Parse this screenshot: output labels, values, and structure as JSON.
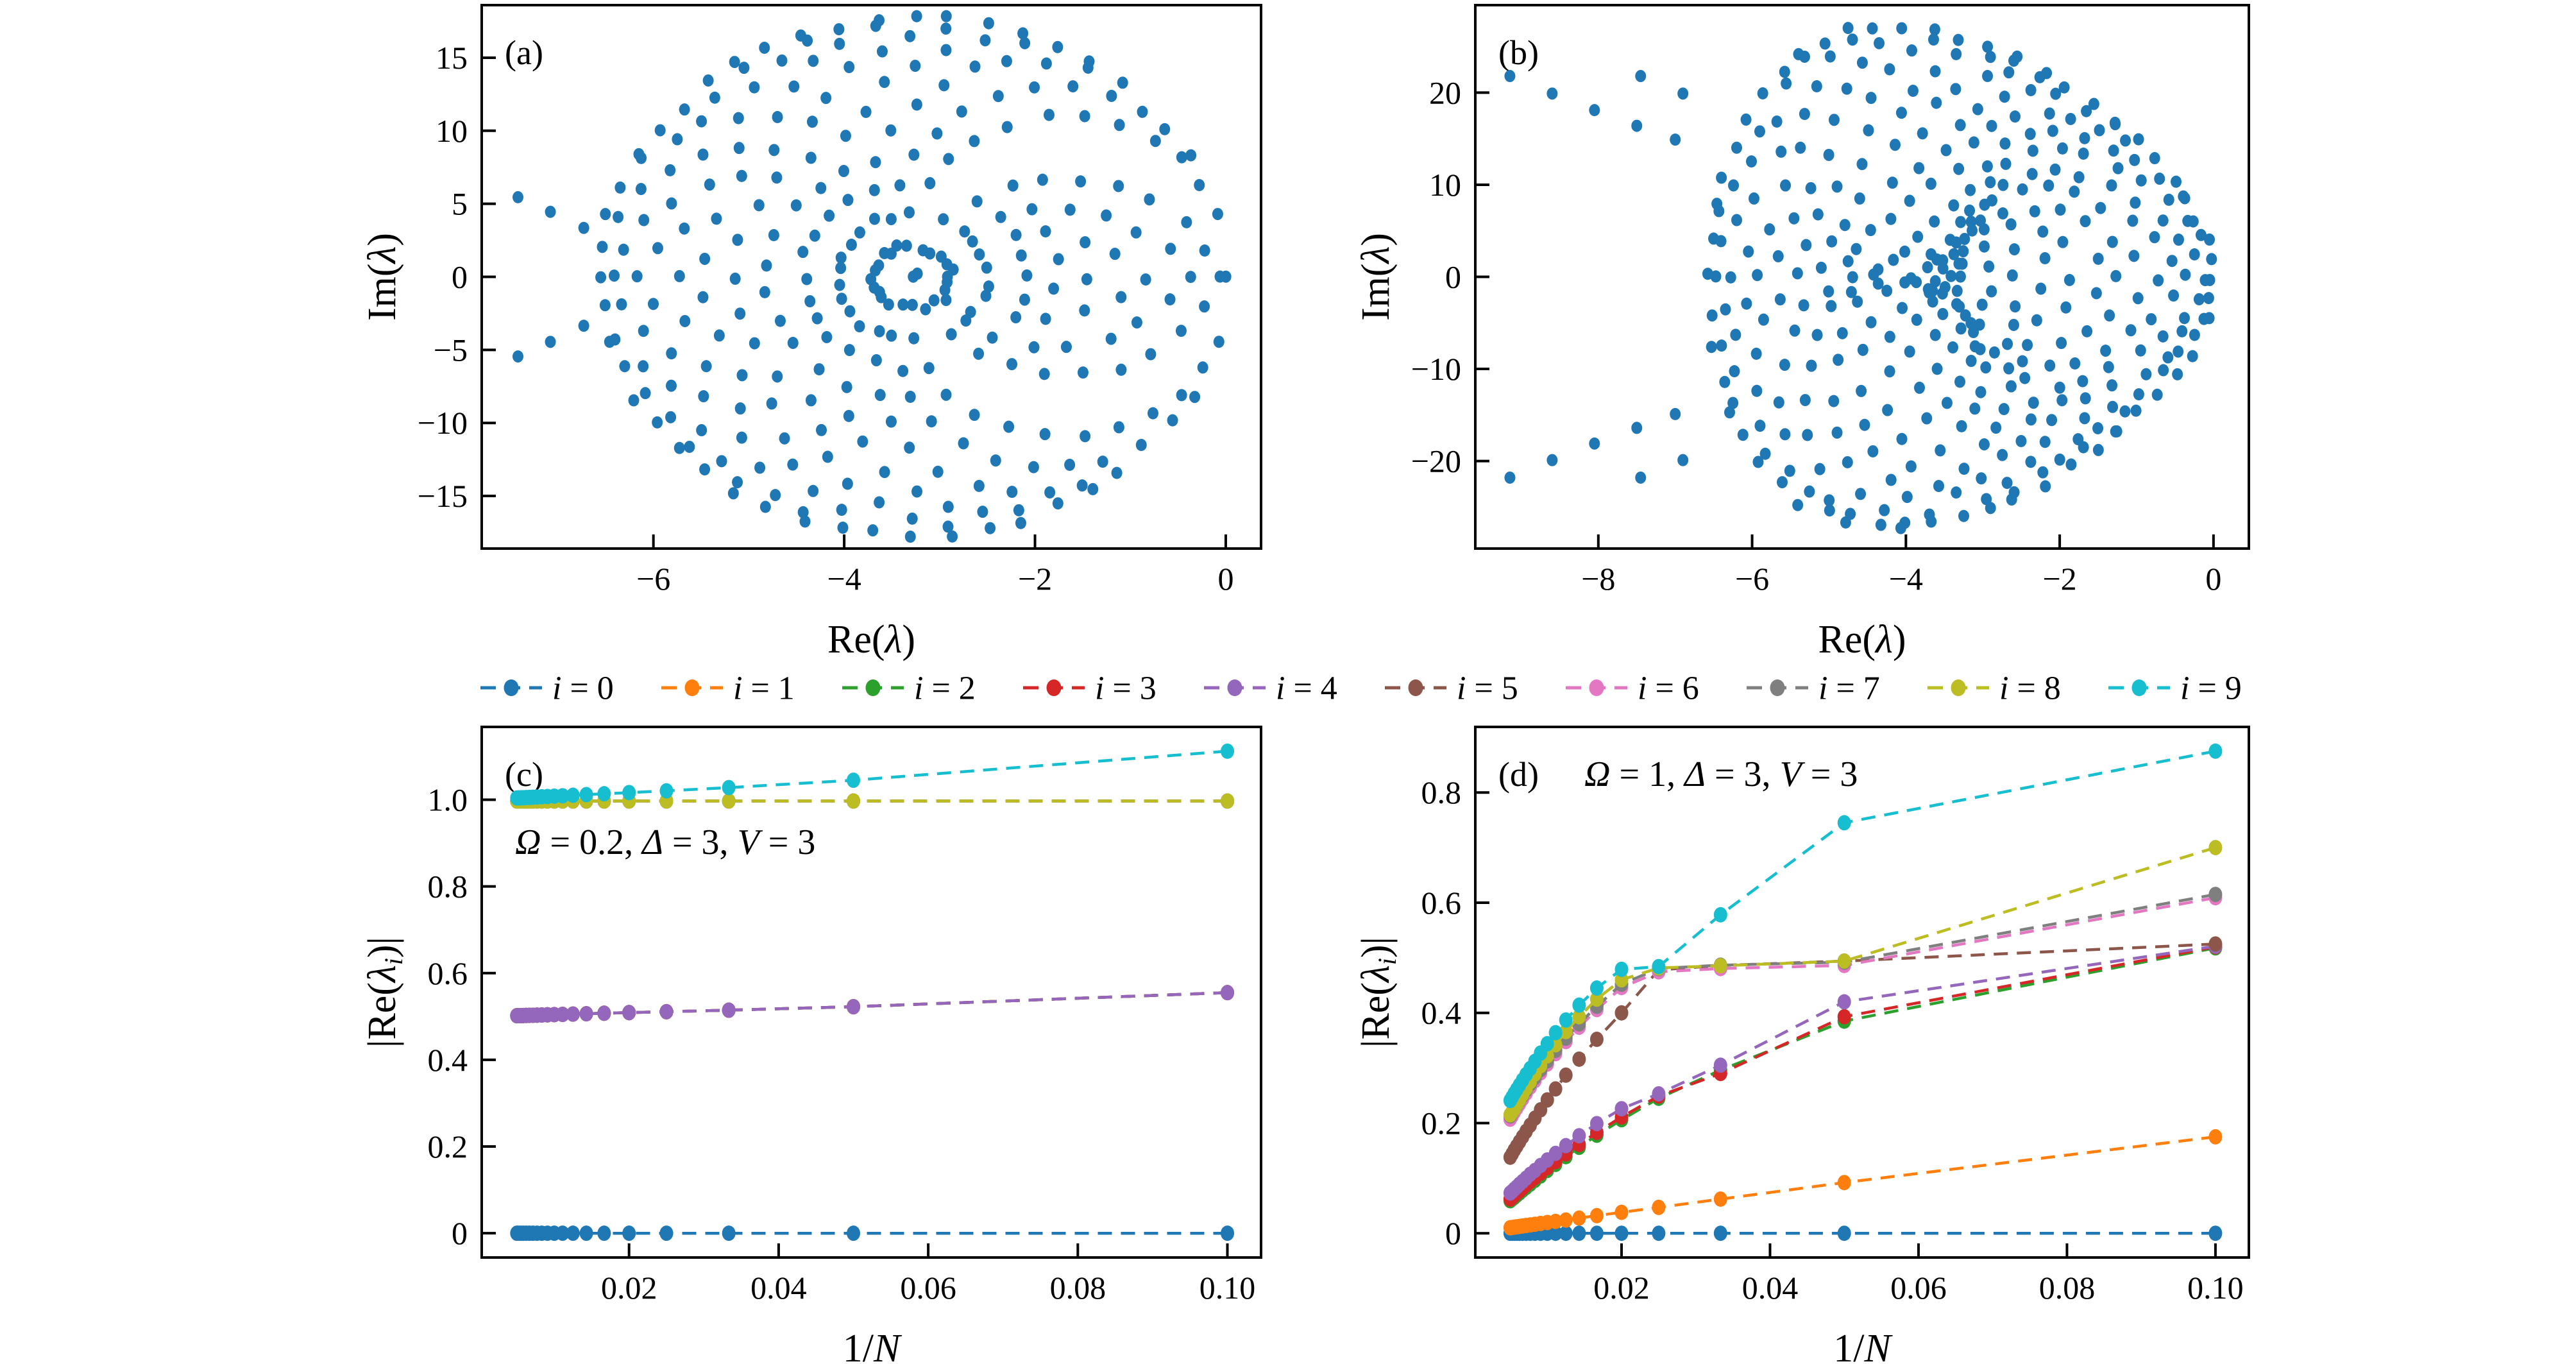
{
  "figure": {
    "background": "#ffffff",
    "scatter_color": "#1f77b4"
  },
  "legend": {
    "position": "top-center-between-rows",
    "entries": [
      {
        "label": "i = 0",
        "color": "#1f77b4"
      },
      {
        "label": "i = 1",
        "color": "#ff7f0e"
      },
      {
        "label": "i = 2",
        "color": "#2ca02c"
      },
      {
        "label": "i = 3",
        "color": "#d62728"
      },
      {
        "label": "i = 4",
        "color": "#9467bd"
      },
      {
        "label": "i = 5",
        "color": "#8c564b"
      },
      {
        "label": "i = 6",
        "color": "#e377c2"
      },
      {
        "label": "i = 7",
        "color": "#7f7f7f"
      },
      {
        "label": "i = 8",
        "color": "#bcbd22"
      },
      {
        "label": "i = 9",
        "color": "#17becf"
      }
    ]
  },
  "chart_data": [
    {
      "id": "a",
      "type": "scatter",
      "panel_label": "(a)",
      "xlabel": "Re(λ)",
      "ylabel": "Im(λ)",
      "xlim": [
        -7.8,
        0.37
      ],
      "ylim": [
        -18.6,
        18.6
      ],
      "xticks": [
        -6,
        -4,
        -2,
        0
      ],
      "xtick_labels": [
        "−6",
        "−4",
        "−2",
        "0"
      ],
      "yticks": [
        -15,
        -10,
        -5,
        0,
        5,
        10,
        15
      ],
      "ytick_labels": [
        "−15",
        "−10",
        "−5",
        "0",
        "5",
        "10",
        "15"
      ],
      "color": "#1f77b4",
      "points_model": {
        "kind": "pair_sum_ellipse",
        "K": 13,
        "a": 1.638,
        "b": 8.9,
        "im_skew": 0,
        "include_zero_pairs": false,
        "jitter": [
          0.1,
          0.45
        ],
        "dedupe": [
          0.1,
          0.55
        ],
        "seed": 11
      },
      "extra_points": [
        [
          -7.42,
          5.45
        ],
        [
          -7.08,
          4.45
        ],
        [
          -6.73,
          3.35
        ],
        [
          -7.42,
          -5.45
        ],
        [
          -7.08,
          -4.45
        ],
        [
          -6.73,
          -3.35
        ]
      ]
    },
    {
      "id": "b",
      "type": "scatter",
      "panel_label": "(b)",
      "xlabel": "Re(λ)",
      "ylabel": "Im(λ)",
      "xlim": [
        -9.6,
        0.46
      ],
      "ylim": [
        -29.5,
        29.5
      ],
      "xticks": [
        -8,
        -6,
        -4,
        -2,
        0
      ],
      "xtick_labels": [
        "−8",
        "−6",
        "−4",
        "−2",
        "0"
      ],
      "yticks": [
        -20,
        -10,
        0,
        10,
        20
      ],
      "ytick_labels": [
        "−20",
        "−10",
        "0",
        "10",
        "20"
      ],
      "color": "#1f77b4",
      "points_model": {
        "kind": "pair_sum_ellipse",
        "K": 14,
        "a": 1.65,
        "b": 13.2,
        "im_skew": 0.3,
        "include_zero_pairs": true,
        "jitter": [
          0.12,
          0.8
        ],
        "dedupe": [
          0.12,
          0.9
        ],
        "seed": 23
      },
      "extra_points": [
        [
          -9.15,
          21.8
        ],
        [
          -8.6,
          19.9
        ],
        [
          -8.05,
          18.1
        ],
        [
          -7.5,
          16.4
        ],
        [
          -7.0,
          14.9
        ],
        [
          -7.45,
          21.8
        ],
        [
          -6.9,
          19.9
        ],
        [
          -9.15,
          -21.8
        ],
        [
          -8.6,
          -19.9
        ],
        [
          -8.05,
          -18.1
        ],
        [
          -7.5,
          -16.4
        ],
        [
          -7.0,
          -14.9
        ],
        [
          -7.45,
          -21.8
        ],
        [
          -6.9,
          -19.9
        ]
      ]
    },
    {
      "id": "c",
      "type": "line",
      "panel_label": "(c)",
      "annotation": "Ω = 0.2,  Δ = 3,  V = 3",
      "xlabel": "1/N",
      "ylabel": "|Re(λ_i)|",
      "xlim": [
        0.0003,
        0.1045
      ],
      "ylim": [
        -0.056,
        1.168
      ],
      "xticks": [
        0.02,
        0.04,
        0.06,
        0.08,
        0.1
      ],
      "xtick_labels": [
        "0.02",
        "0.04",
        "0.06",
        "0.08",
        "0.10"
      ],
      "yticks": [
        0,
        0.2,
        0.4,
        0.6,
        0.8,
        1.0
      ],
      "ytick_labels": [
        "0",
        "0.2",
        "0.4",
        "0.6",
        "0.8",
        "1.0"
      ],
      "x": [
        0.1,
        0.05,
        0.033333,
        0.025,
        0.02,
        0.016667,
        0.014286,
        0.0125,
        0.011111,
        0.01,
        0.009091,
        0.008333,
        0.007692,
        0.007143,
        0.006667,
        0.00625,
        0.005882,
        0.005556,
        0.005263,
        0.005
      ],
      "series": [
        {
          "name": "i = 0",
          "color": "#1f77b4",
          "values": [
            0,
            0,
            0,
            0,
            0,
            0,
            0,
            0,
            0,
            0,
            0,
            0,
            0,
            0,
            0,
            0,
            0,
            0,
            0,
            0
          ]
        },
        {
          "name": "i = 1",
          "color": "#ff7f0e",
          "values": [
            0.555,
            0.5225,
            0.5145,
            0.511,
            0.509,
            0.5075,
            0.5063,
            0.5055,
            0.5048,
            0.5043,
            0.5038,
            0.5034,
            0.5031,
            0.5028,
            0.5026,
            0.5024,
            0.5022,
            0.502,
            0.5019,
            0.5018
          ]
        },
        {
          "name": "i = 2",
          "color": "#2ca02c",
          "values": [
            0.555,
            0.5225,
            0.5145,
            0.511,
            0.509,
            0.5075,
            0.5063,
            0.5055,
            0.5048,
            0.5043,
            0.5038,
            0.5034,
            0.5031,
            0.5028,
            0.5026,
            0.5024,
            0.5022,
            0.502,
            0.5019,
            0.5018
          ]
        },
        {
          "name": "i = 3",
          "color": "#d62728",
          "values": [
            0.555,
            0.5225,
            0.5145,
            0.511,
            0.509,
            0.5075,
            0.5063,
            0.5055,
            0.5048,
            0.5043,
            0.5038,
            0.5034,
            0.5031,
            0.5028,
            0.5026,
            0.5024,
            0.5022,
            0.502,
            0.5019,
            0.5018
          ]
        },
        {
          "name": "i = 4",
          "color": "#9467bd",
          "values": [
            0.555,
            0.5225,
            0.5145,
            0.511,
            0.509,
            0.5075,
            0.5063,
            0.5055,
            0.5048,
            0.5043,
            0.5038,
            0.5034,
            0.5031,
            0.5028,
            0.5026,
            0.5024,
            0.5022,
            0.502,
            0.5019,
            0.5018
          ]
        },
        {
          "name": "i = 5",
          "color": "#8c564b",
          "values": [
            0.997,
            0.997,
            0.997,
            0.997,
            0.997,
            0.997,
            0.997,
            0.997,
            0.997,
            0.997,
            0.997,
            0.997,
            0.997,
            0.997,
            0.997,
            0.997,
            0.997,
            0.997,
            0.997,
            0.997
          ]
        },
        {
          "name": "i = 6",
          "color": "#e377c2",
          "values": [
            0.997,
            0.997,
            0.997,
            0.997,
            0.997,
            0.997,
            0.997,
            0.997,
            0.997,
            0.997,
            0.997,
            0.997,
            0.997,
            0.997,
            0.997,
            0.997,
            0.997,
            0.997,
            0.997,
            0.997
          ]
        },
        {
          "name": "i = 7",
          "color": "#7f7f7f",
          "values": [
            0.997,
            0.997,
            0.997,
            0.997,
            0.997,
            0.997,
            0.997,
            0.997,
            0.997,
            0.997,
            0.997,
            0.997,
            0.997,
            0.997,
            0.997,
            0.997,
            0.997,
            0.997,
            0.997,
            0.997
          ]
        },
        {
          "name": "i = 8",
          "color": "#bcbd22",
          "values": [
            0.997,
            0.997,
            0.997,
            0.997,
            0.997,
            0.997,
            0.997,
            0.997,
            0.997,
            0.997,
            0.997,
            0.997,
            0.997,
            0.997,
            0.997,
            0.997,
            0.997,
            0.997,
            0.997,
            0.997
          ]
        },
        {
          "name": "i = 9",
          "color": "#17becf",
          "values": [
            1.112,
            1.045,
            1.028,
            1.0205,
            1.0165,
            1.0138,
            1.0118,
            1.0103,
            1.0091,
            1.0082,
            1.0074,
            1.0068,
            1.0062,
            1.0058,
            1.0054,
            1.005,
            1.0047,
            1.0044,
            1.0042,
            1.004
          ]
        }
      ]
    },
    {
      "id": "d",
      "type": "line",
      "panel_label": "(d)",
      "annotation": "Ω = 1,  Δ = 3,  V = 3",
      "xlabel": "1/N",
      "ylabel": "|Re(λ_i)|",
      "xlim": [
        0.0003,
        0.1045
      ],
      "ylim": [
        -0.044,
        0.919
      ],
      "xticks": [
        0.02,
        0.04,
        0.06,
        0.08,
        0.1
      ],
      "xtick_labels": [
        "0.02",
        "0.04",
        "0.06",
        "0.08",
        "0.10"
      ],
      "yticks": [
        0,
        0.2,
        0.4,
        0.6,
        0.8
      ],
      "ytick_labels": [
        "0",
        "0.2",
        "0.4",
        "0.6",
        "0.8"
      ],
      "x": [
        0.1,
        0.05,
        0.033333,
        0.025,
        0.02,
        0.016667,
        0.014286,
        0.0125,
        0.011111,
        0.01,
        0.009091,
        0.008333,
        0.007692,
        0.007143,
        0.006667,
        0.00625,
        0.005882,
        0.005556,
        0.005263,
        0.005
      ],
      "series": [
        {
          "name": "i = 0",
          "color": "#1f77b4",
          "values": [
            0,
            0,
            0,
            0,
            0,
            0,
            0,
            0,
            0,
            0,
            0,
            0,
            0,
            0,
            0,
            0,
            0,
            0,
            0,
            0
          ]
        },
        {
          "name": "i = 1",
          "color": "#ff7f0e",
          "values": [
            0.175,
            0.092,
            0.062,
            0.047,
            0.038,
            0.032,
            0.0275,
            0.024,
            0.0215,
            0.0195,
            0.0178,
            0.0163,
            0.0151,
            0.0141,
            0.0132,
            0.0124,
            0.0117,
            0.0111,
            0.0105,
            0.01
          ]
        },
        {
          "name": "i = 2",
          "color": "#2ca02c",
          "values": [
            0.518,
            0.385,
            0.296,
            0.245,
            0.206,
            0.178,
            0.156,
            0.139,
            0.125,
            0.114,
            0.104,
            0.096,
            0.089,
            0.083,
            0.078,
            0.073,
            0.069,
            0.065,
            0.062,
            0.059
          ]
        },
        {
          "name": "i = 3",
          "color": "#d62728",
          "values": [
            0.52,
            0.393,
            0.29,
            0.249,
            0.211,
            0.183,
            0.161,
            0.144,
            0.13,
            0.119,
            0.109,
            0.101,
            0.094,
            0.088,
            0.082,
            0.077,
            0.073,
            0.069,
            0.065,
            0.062
          ]
        },
        {
          "name": "i = 4",
          "color": "#9467bd",
          "values": [
            0.521,
            0.42,
            0.305,
            0.253,
            0.226,
            0.199,
            0.177,
            0.159,
            0.145,
            0.133,
            0.123,
            0.114,
            0.107,
            0.1,
            0.094,
            0.089,
            0.084,
            0.08,
            0.076,
            0.073
          ]
        },
        {
          "name": "i = 5",
          "color": "#8c564b",
          "values": [
            0.525,
            0.494,
            0.486,
            0.478,
            0.4,
            0.352,
            0.316,
            0.287,
            0.262,
            0.242,
            0.224,
            0.209,
            0.196,
            0.185,
            0.175,
            0.166,
            0.158,
            0.151,
            0.144,
            0.138
          ]
        },
        {
          "name": "i = 6",
          "color": "#e377c2",
          "values": [
            0.609,
            0.486,
            0.4805,
            0.4745,
            0.446,
            0.406,
            0.374,
            0.348,
            0.326,
            0.307,
            0.291,
            0.277,
            0.265,
            0.254,
            0.244,
            0.235,
            0.227,
            0.22,
            0.213,
            0.207
          ]
        },
        {
          "name": "i = 7",
          "color": "#7f7f7f",
          "values": [
            0.615,
            0.492,
            0.4865,
            0.4805,
            0.452,
            0.412,
            0.38,
            0.354,
            0.332,
            0.313,
            0.297,
            0.283,
            0.271,
            0.26,
            0.25,
            0.241,
            0.233,
            0.226,
            0.219,
            0.213
          ]
        },
        {
          "name": "i = 8",
          "color": "#bcbd22",
          "values": [
            0.7,
            0.494,
            0.4855,
            0.4815,
            0.46,
            0.425,
            0.393,
            0.366,
            0.342,
            0.322,
            0.304,
            0.289,
            0.275,
            0.263,
            0.252,
            0.242,
            0.234,
            0.226,
            0.22,
            0.215
          ]
        },
        {
          "name": "i = 9",
          "color": "#17becf",
          "values": [
            0.875,
            0.745,
            0.578,
            0.484,
            0.479,
            0.445,
            0.414,
            0.387,
            0.364,
            0.344,
            0.327,
            0.312,
            0.299,
            0.288,
            0.278,
            0.269,
            0.261,
            0.254,
            0.247,
            0.241
          ]
        }
      ]
    }
  ]
}
